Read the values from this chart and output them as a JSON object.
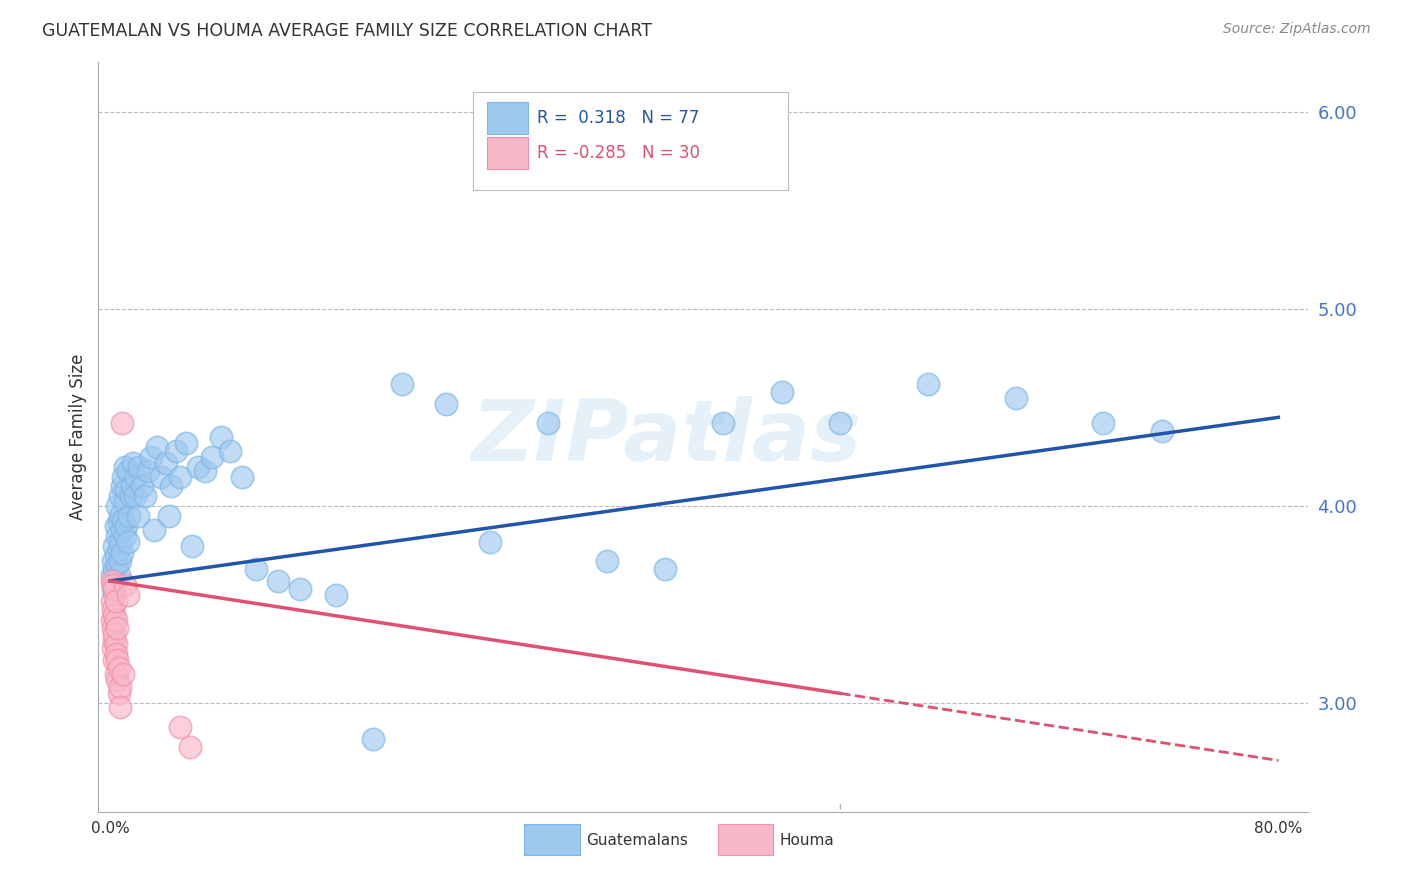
{
  "title": "GUATEMALAN VS HOUMA AVERAGE FAMILY SIZE CORRELATION CHART",
  "source": "Source: ZipAtlas.com",
  "ylabel": "Average Family Size",
  "ylim": [
    2.45,
    6.25
  ],
  "xlim": [
    -0.008,
    0.82
  ],
  "yticks": [
    3.0,
    4.0,
    5.0,
    6.0
  ],
  "blue_color": "#9EC8EE",
  "blue_edge_color": "#7EB6E8",
  "pink_color": "#F9B8C8",
  "pink_edge_color": "#F090A8",
  "blue_line_color": "#2255AA",
  "pink_line_color": "#E05070",
  "watermark": "ZIPatlas",
  "blue_line_x0": 0.0,
  "blue_line_y0": 3.62,
  "blue_line_x1": 0.8,
  "blue_line_y1": 4.45,
  "pink_line_x0": 0.0,
  "pink_line_y0": 3.62,
  "pink_line_x1_solid": 0.5,
  "pink_line_y1_solid": 3.05,
  "pink_line_x1_dash": 0.8,
  "pink_line_y1_dash": 2.71,
  "guat_x": [
    0.001,
    0.002,
    0.002,
    0.003,
    0.003,
    0.003,
    0.004,
    0.004,
    0.004,
    0.005,
    0.005,
    0.005,
    0.006,
    0.006,
    0.006,
    0.007,
    0.007,
    0.007,
    0.007,
    0.008,
    0.008,
    0.008,
    0.009,
    0.009,
    0.01,
    0.01,
    0.01,
    0.011,
    0.011,
    0.012,
    0.012,
    0.013,
    0.014,
    0.015,
    0.016,
    0.017,
    0.018,
    0.019,
    0.02,
    0.022,
    0.024,
    0.026,
    0.028,
    0.03,
    0.032,
    0.035,
    0.038,
    0.04,
    0.042,
    0.045,
    0.048,
    0.052,
    0.056,
    0.06,
    0.065,
    0.07,
    0.076,
    0.082,
    0.09,
    0.1,
    0.115,
    0.13,
    0.155,
    0.18,
    0.2,
    0.23,
    0.26,
    0.3,
    0.34,
    0.38,
    0.42,
    0.46,
    0.5,
    0.56,
    0.62,
    0.68,
    0.72
  ],
  "guat_y": [
    3.65,
    3.72,
    3.58,
    3.8,
    3.68,
    3.55,
    3.9,
    3.75,
    3.62,
    3.85,
    3.7,
    4.0,
    3.92,
    3.78,
    3.65,
    3.95,
    3.82,
    4.05,
    3.72,
    3.88,
    4.1,
    3.76,
    3.93,
    4.15,
    3.85,
    4.02,
    4.2,
    3.9,
    4.08,
    3.82,
    4.18,
    3.95,
    4.05,
    4.1,
    4.22,
    4.05,
    4.15,
    3.95,
    4.2,
    4.1,
    4.05,
    4.18,
    4.25,
    3.88,
    4.3,
    4.15,
    4.22,
    3.95,
    4.1,
    4.28,
    4.15,
    4.32,
    3.8,
    4.2,
    4.18,
    4.25,
    4.35,
    4.28,
    4.15,
    3.68,
    3.62,
    3.58,
    3.55,
    2.82,
    4.62,
    4.52,
    3.82,
    4.42,
    3.72,
    3.68,
    4.42,
    4.58,
    4.42,
    4.62,
    4.55,
    4.42,
    4.38
  ],
  "houma_x": [
    0.001,
    0.001,
    0.001,
    0.002,
    0.002,
    0.002,
    0.002,
    0.003,
    0.003,
    0.003,
    0.003,
    0.003,
    0.004,
    0.004,
    0.004,
    0.004,
    0.004,
    0.005,
    0.005,
    0.005,
    0.006,
    0.006,
    0.007,
    0.007,
    0.008,
    0.009,
    0.01,
    0.012,
    0.048,
    0.055
  ],
  "houma_y": [
    3.52,
    3.42,
    3.62,
    3.38,
    3.28,
    3.48,
    3.6,
    3.32,
    3.22,
    3.45,
    3.58,
    3.35,
    3.42,
    3.3,
    3.52,
    3.25,
    3.15,
    3.38,
    3.22,
    3.12,
    3.18,
    3.05,
    3.08,
    2.98,
    4.42,
    3.15,
    3.6,
    3.55,
    2.88,
    2.78
  ]
}
